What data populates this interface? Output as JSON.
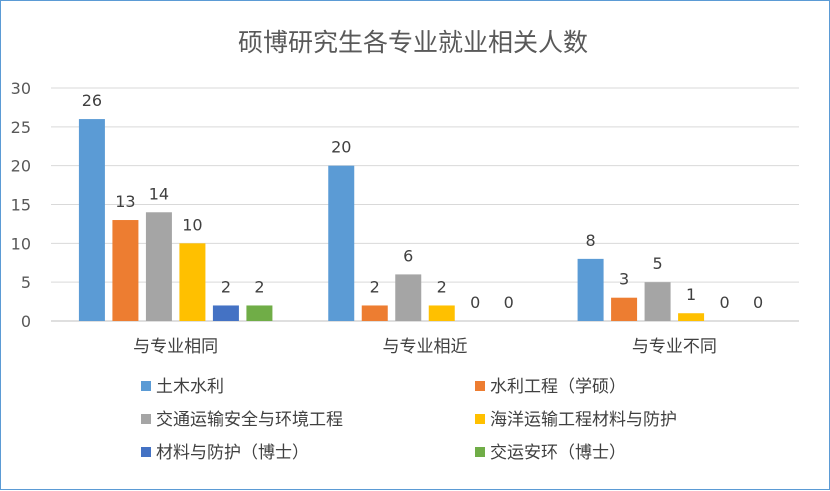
{
  "chart_data": {
    "type": "bar",
    "title": "硕博研究生各专业就业相关人数",
    "categories": [
      "与专业相同",
      "与专业相近",
      "与专业不同"
    ],
    "ylim": [
      0,
      30
    ],
    "yticks": [
      0,
      5,
      10,
      15,
      20,
      25,
      30
    ],
    "grid": true,
    "legend_position": "bottom",
    "series": [
      {
        "name": "土木水利",
        "color": "#5b9bd5",
        "values": [
          26,
          20,
          8
        ]
      },
      {
        "name": "水利工程（学硕）",
        "color": "#ed7d31",
        "values": [
          13,
          2,
          3
        ]
      },
      {
        "name": "交通运输安全与环境工程",
        "color": "#a5a5a5",
        "values": [
          14,
          6,
          5
        ]
      },
      {
        "name": "海洋运输工程材料与防护",
        "color": "#ffc000",
        "values": [
          10,
          2,
          1
        ]
      },
      {
        "name": "材料与防护（博士）",
        "color": "#4472c4",
        "values": [
          2,
          0,
          0
        ]
      },
      {
        "name": "交运安环（博士）",
        "color": "#70ad47",
        "values": [
          2,
          0,
          0
        ]
      }
    ]
  }
}
